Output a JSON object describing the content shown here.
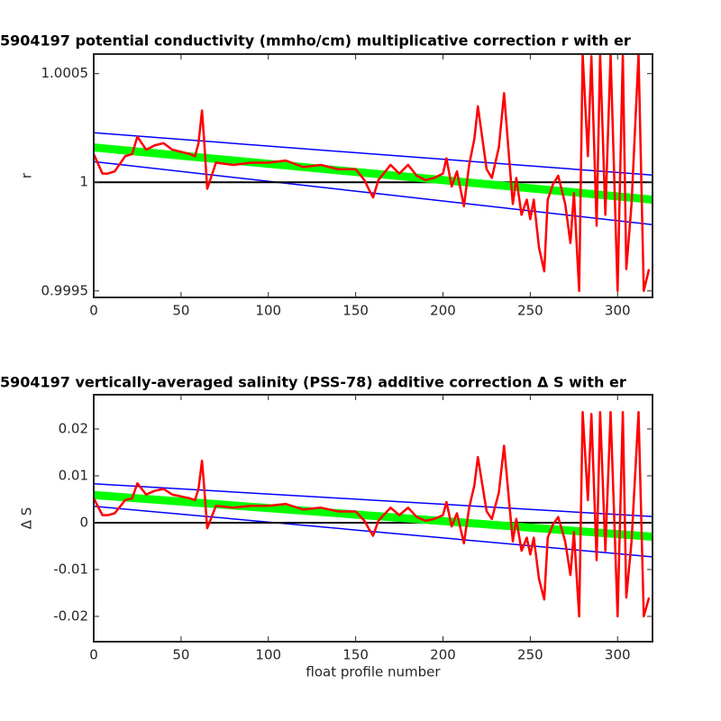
{
  "chart_data": [
    {
      "type": "line",
      "title": "5904197 potential conductivity (mmho/cm) multiplicative correction r with er",
      "ylabel": "r",
      "xlim": [
        0,
        320
      ],
      "xticks": [
        0,
        50,
        100,
        150,
        200,
        250,
        300
      ],
      "ylim": [
        0.99947,
        1.00059
      ],
      "yticks": [
        0.9995,
        1,
        1.0005
      ],
      "hline": 1,
      "series": [
        {
          "color": "#0000ff",
          "linewidth": 1.5,
          "x": [
            0,
            160,
            320
          ],
          "values": [
            1.000228,
            1.00013,
            1.000033
          ]
        },
        {
          "color": "#0000ff",
          "linewidth": 1.5,
          "x": [
            0,
            160,
            320
          ],
          "values": [
            1.000095,
            0.99995,
            0.999805
          ]
        },
        {
          "color": "#00ff00",
          "linewidth": 9,
          "x": [
            0,
            160,
            320
          ],
          "values": [
            1.00016,
            1.00004,
            0.99992
          ]
        },
        {
          "color": "#ff0000",
          "linewidth": 2.5,
          "x": [
            0,
            5,
            8,
            12,
            18,
            22,
            25,
            30,
            35,
            40,
            45,
            50,
            55,
            58,
            60,
            62,
            63,
            65,
            70,
            80,
            90,
            100,
            110,
            120,
            130,
            140,
            150,
            155,
            158,
            160,
            163,
            165,
            170,
            175,
            180,
            185,
            190,
            195,
            200,
            202,
            205,
            208,
            212,
            215,
            218,
            220,
            225,
            228,
            232,
            235,
            238,
            240,
            242,
            245,
            248,
            250,
            252,
            255,
            258,
            260,
            263,
            266,
            270,
            273,
            275,
            278,
            280,
            283,
            285,
            288,
            290,
            293,
            296,
            300,
            303,
            305,
            308,
            312,
            315,
            318
          ],
          "values": [
            1.00013,
            1.00004,
            1.00004,
            1.00005,
            1.00012,
            1.00013,
            1.00021,
            1.00015,
            1.00017,
            1.00018,
            1.00015,
            1.00014,
            1.00013,
            1.00012,
            1.00018,
            1.00033,
            1.00022,
            0.99997,
            1.00009,
            1.00008,
            1.00009,
            1.00009,
            1.0001,
            1.00007,
            1.00008,
            1.00006,
            1.00006,
            1.00001,
            0.99996,
            0.99993,
            1.00001,
            1.00003,
            1.00008,
            1.00004,
            1.00008,
            1.00003,
            1.00001,
            1.00002,
            1.00004,
            1.00011,
            0.99998,
            1.00005,
            0.99989,
            1.00008,
            1.0002,
            1.00035,
            1.00006,
            1.00002,
            1.00016,
            1.00041,
            1.0001,
            0.9999,
            1.00002,
            0.99985,
            0.99992,
            0.99983,
            0.99992,
            0.9997,
            0.99959,
            0.99992,
            0.99999,
            1.00003,
            0.9999,
            0.99972,
            0.99995,
            0.9995,
            1.00059,
            1.00012,
            1.00058,
            0.9998,
            1.00059,
            0.99985,
            1.00059,
            0.9995,
            1.00059,
            0.9996,
            0.9999,
            1.00059,
            0.9995,
            0.9996
          ]
        }
      ]
    },
    {
      "type": "line",
      "title": "5904197 vertically-averaged salinity (PSS-78) additive correction Δ S with er",
      "ylabel": "Δ S",
      "xlabel": "float profile number",
      "xlim": [
        0,
        320
      ],
      "xticks": [
        0,
        50,
        100,
        150,
        200,
        250,
        300
      ],
      "ylim": [
        -0.0254,
        0.0273
      ],
      "yticks": [
        -0.02,
        -0.01,
        0,
        0.01,
        0.02
      ],
      "hline": 0,
      "series": [
        {
          "color": "#0000ff",
          "linewidth": 1.5,
          "x": [
            0,
            160,
            320
          ],
          "values": [
            0.0083,
            0.0048,
            0.0013
          ]
        },
        {
          "color": "#0000ff",
          "linewidth": 1.5,
          "x": [
            0,
            160,
            320
          ],
          "values": [
            0.0035,
            -0.0019,
            -0.0073
          ]
        },
        {
          "color": "#00ff00",
          "linewidth": 9,
          "x": [
            0,
            160,
            320
          ],
          "values": [
            0.0059,
            0.00145,
            -0.003
          ]
        },
        {
          "color": "#ff0000",
          "linewidth": 2.5,
          "x": [
            0,
            5,
            8,
            12,
            18,
            22,
            25,
            30,
            35,
            40,
            45,
            50,
            55,
            58,
            60,
            62,
            63,
            65,
            70,
            80,
            90,
            100,
            110,
            120,
            130,
            140,
            150,
            155,
            158,
            160,
            163,
            165,
            170,
            175,
            180,
            185,
            190,
            195,
            200,
            202,
            205,
            208,
            212,
            215,
            218,
            220,
            225,
            228,
            232,
            235,
            238,
            240,
            242,
            245,
            248,
            250,
            252,
            255,
            258,
            260,
            263,
            266,
            270,
            273,
            275,
            278,
            280,
            283,
            285,
            288,
            290,
            293,
            296,
            300,
            303,
            305,
            308,
            312,
            315,
            318
          ],
          "values": [
            0.0052,
            0.0016,
            0.0016,
            0.002,
            0.0048,
            0.0052,
            0.0084,
            0.006,
            0.0068,
            0.0072,
            0.006,
            0.0056,
            0.0052,
            0.0048,
            0.0072,
            0.0132,
            0.0088,
            -0.0012,
            0.0036,
            0.0032,
            0.0036,
            0.0036,
            0.004,
            0.0028,
            0.0032,
            0.0024,
            0.0024,
            0.0004,
            -0.0016,
            -0.0028,
            0.0004,
            0.0012,
            0.0032,
            0.0016,
            0.0032,
            0.0012,
            0.0004,
            0.0008,
            0.0016,
            0.0044,
            -0.0008,
            0.002,
            -0.0044,
            0.0032,
            0.008,
            0.014,
            0.0024,
            0.0008,
            0.0064,
            0.0164,
            0.004,
            -0.004,
            0.0008,
            -0.006,
            -0.0032,
            -0.0068,
            -0.0032,
            -0.012,
            -0.0164,
            -0.0032,
            -0.0004,
            0.0012,
            -0.004,
            -0.0112,
            -0.002,
            -0.02,
            0.0236,
            0.0048,
            0.0232,
            -0.008,
            0.0236,
            -0.006,
            0.0236,
            -0.02,
            0.0236,
            -0.016,
            -0.004,
            0.0236,
            -0.02,
            -0.016
          ]
        }
      ]
    }
  ]
}
